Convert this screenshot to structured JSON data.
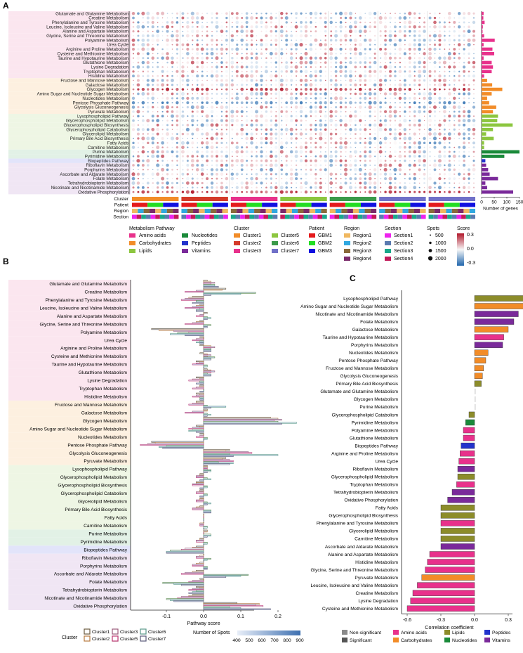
{
  "panels": {
    "a": "A",
    "b": "B",
    "c": "C"
  },
  "colors": {
    "amino": "#e8318b",
    "carb": "#f28c28",
    "lipid": "#8cc63f",
    "nuc": "#1a8a3a",
    "pep": "#2233cc",
    "vit": "#7a2a9a",
    "band_amino": "#fbe6ef",
    "band_carb": "#fdf0e0",
    "band_lipid": "#eef6e4",
    "band_nuc": "#e2f1e6",
    "band_pep": "#e2e4fa",
    "band_vit": "#f0e6f4",
    "corr_amino": "#e8318b",
    "corr_carb": "#f28c28",
    "corr_lipid": "#8c8c2a",
    "corr_nuc": "#1a8a3a",
    "corr_pep": "#2233cc",
    "corr_vit": "#7a2a9a",
    "corr_ns": "#d8d8d8"
  },
  "chart_data": [
    {
      "type": "heatmap",
      "panel": "A",
      "pathways": [
        "Glutamate and Glutamine Metabolism",
        "Creatine Metabolism",
        "Phenylalanine and Tyrosine Metabolism",
        "Leucine, Isoleucine and Valine Metabolism",
        "Alanine and Aspartate Metabolism",
        "Glycine, Serine and Threonine Metabolism",
        "Polyamine Metabolism",
        "Urea Cycle",
        "Arginine and Proline Metabolism",
        "Cysteine and Methionine Metabolism",
        "Taurine and Hypotaurine Metabolism",
        "Glutathione Metabolism",
        "Lysine Degradation",
        "Tryptophan Metabolism",
        "Histidine Metabolism",
        "Fructose and Mannose Metabolism",
        "Galactose Metabolism",
        "Glycogen Metabolism",
        "Amino Sugar and Nucleotide Sugar Metabolism",
        "Nucleotides Metabolism",
        "Pentose Phosphate Pathway",
        "Glycolysis Gluconeogenesis",
        "Pyruvate Metabolism",
        "Lysophospholipid Pathway",
        "Glycerophospholipid Metabolism",
        "Glycerophospholipid Biosynthesis",
        "Glycerophospholipid Catabolism",
        "Glycerolipid Metabolism",
        "Primary Bile Acid Biosynthesis",
        "Fatty Acids",
        "Carnitine Metabolism",
        "Purine Metabolism",
        "Pyrimidine Metabolism",
        "Biopeptides Pathway",
        "Riboflavin Metabolism",
        "Porphyrins Metabolism",
        "Ascorbate and Aldarate Metabolism",
        "Folate Metabolism",
        "Tetrahydrobiopterin Metabolism",
        "Nicotinate and Nicotinamide Metabolism",
        "Oxidative Phosphorylation"
      ],
      "pathway_class": [
        "amino",
        "amino",
        "amino",
        "amino",
        "amino",
        "amino",
        "amino",
        "amino",
        "amino",
        "amino",
        "amino",
        "amino",
        "amino",
        "amino",
        "amino",
        "carb",
        "carb",
        "carb",
        "carb",
        "carb",
        "carb",
        "carb",
        "carb",
        "lipid",
        "lipid",
        "lipid",
        "lipid",
        "lipid",
        "lipid",
        "lipid",
        "lipid",
        "nuc",
        "nuc",
        "pep",
        "vit",
        "vit",
        "vit",
        "vit",
        "vit",
        "vit",
        "vit"
      ],
      "num_genes": [
        8,
        7,
        12,
        5,
        4,
        10,
        52,
        8,
        43,
        50,
        8,
        40,
        45,
        40,
        10,
        22,
        42,
        82,
        40,
        22,
        30,
        58,
        45,
        65,
        62,
        123,
        45,
        18,
        48,
        10,
        10,
        150,
        90,
        15,
        18,
        26,
        32,
        65,
        15,
        22,
        125
      ],
      "num_genes_axis": {
        "ticks": [
          0,
          50,
          100,
          150
        ],
        "xlabel": "Number of genes"
      },
      "annotation_rows": [
        "Cluster",
        "Patient",
        "Region",
        "Section"
      ],
      "column_groups": 7,
      "score_scale": {
        "min": -0.3,
        "max": 0.3,
        "ticks": [
          "0.3",
          "0.0",
          "-0.3"
        ],
        "title": "Score"
      },
      "spots_scale": {
        "title": "Spots",
        "values": [
          "500",
          "1000",
          "1500",
          "2000"
        ]
      }
    },
    {
      "type": "bar",
      "panel": "B",
      "orientation": "horizontal",
      "xlabel": "Pathway score",
      "xlim": [
        -0.2,
        0.25
      ],
      "xticks": [
        "-0.1",
        "0.0",
        "0.1",
        "0.2"
      ],
      "legend_cluster_title": "Cluster",
      "legend_spots_title": "Number of Spots",
      "spots_ticks": [
        "400",
        "500",
        "600",
        "700",
        "800",
        "900"
      ],
      "series": [
        {
          "name": "Cluster1",
          "color": "#6a5a3e",
          "values": [
            0.01,
            0.06,
            -0.03,
            -0.01,
            0.01,
            -0.01,
            -0.14,
            -0.01,
            -0.01,
            -0.01,
            -0.02,
            0.01,
            -0.02,
            -0.01,
            -0.02,
            -0.02,
            0.01,
            0.18,
            -0.02,
            -0.01,
            -0.14,
            0.07,
            0.06,
            0.01,
            -0.01,
            -0.02,
            -0.01,
            -0.01,
            -0.01,
            0.0,
            0.0,
            0.01,
            -0.01,
            -0.02,
            0.0,
            -0.01,
            -0.02,
            -0.01,
            -0.02,
            -0.03,
            0.09
          ]
        },
        {
          "name": "Cluster2",
          "color": "#b87a3e",
          "values": [
            0.02,
            0.05,
            -0.04,
            -0.02,
            0.0,
            -0.02,
            -0.12,
            0.0,
            0.02,
            0.01,
            -0.01,
            0.02,
            -0.01,
            -0.01,
            -0.01,
            -0.02,
            0.01,
            0.2,
            -0.01,
            0.0,
            -0.13,
            0.06,
            0.05,
            0.01,
            -0.01,
            -0.02,
            -0.01,
            -0.01,
            -0.02,
            0.0,
            -0.01,
            0.01,
            -0.01,
            -0.03,
            -0.01,
            -0.02,
            -0.03,
            0.0,
            -0.01,
            -0.04,
            0.15
          ]
        },
        {
          "name": "Cluster3",
          "color": "#9a5a7a",
          "values": [
            0.03,
            -0.02,
            -0.05,
            -0.03,
            -0.01,
            -0.03,
            -0.08,
            -0.02,
            0.03,
            0.02,
            -0.02,
            0.03,
            -0.03,
            -0.02,
            -0.02,
            -0.03,
            -0.03,
            0.21,
            -0.03,
            -0.01,
            -0.15,
            0.12,
            0.07,
            0.01,
            -0.02,
            -0.03,
            -0.02,
            -0.02,
            -0.03,
            0.0,
            -0.01,
            0.0,
            -0.02,
            -0.05,
            -0.02,
            -0.03,
            -0.05,
            -0.03,
            -0.03,
            -0.06,
            0.14
          ]
        },
        {
          "name": "Cluster4",
          "color": "#c23a78",
          "values": [
            0.02,
            -0.05,
            -0.06,
            -0.05,
            -0.02,
            -0.05,
            -0.04,
            -0.03,
            0.02,
            0.01,
            -0.03,
            0.02,
            -0.04,
            -0.03,
            -0.03,
            -0.04,
            -0.05,
            0.19,
            -0.04,
            -0.02,
            -0.17,
            0.13,
            0.08,
            0.01,
            -0.02,
            -0.03,
            -0.02,
            -0.02,
            -0.03,
            0.0,
            -0.01,
            0.0,
            -0.02,
            -0.06,
            -0.02,
            -0.03,
            -0.06,
            -0.04,
            -0.04,
            -0.07,
            0.16
          ]
        },
        {
          "name": "Cluster5",
          "color": "#5a8a4a",
          "values": [
            0.03,
            0.14,
            -0.02,
            -0.01,
            0.01,
            0.02,
            -0.07,
            -0.01,
            0.02,
            0.03,
            0.01,
            0.01,
            -0.01,
            0.0,
            -0.01,
            0.01,
            0.01,
            0.2,
            -0.03,
            0.01,
            -0.1,
            0.07,
            0.04,
            0.02,
            0.01,
            0.01,
            0.01,
            0.01,
            0.02,
            0.0,
            0.01,
            0.02,
            0.01,
            -0.09,
            0.02,
            0.01,
            0.12,
            -0.11,
            -0.02,
            -0.1,
            0.07
          ]
        },
        {
          "name": "Cluster6",
          "color": "#5a9a8a",
          "values": [
            0.03,
            0.1,
            -0.02,
            -0.02,
            0.02,
            0.01,
            -0.09,
            -0.02,
            0.02,
            0.02,
            0.01,
            0.02,
            -0.01,
            0.0,
            -0.01,
            0.06,
            0.02,
            0.25,
            -0.04,
            0.01,
            -0.12,
            0.2,
            0.08,
            0.02,
            0.02,
            0.01,
            0.01,
            0.02,
            0.02,
            0.0,
            0.01,
            0.02,
            0.01,
            -0.1,
            0.01,
            0.01,
            0.1,
            -0.08,
            -0.03,
            -0.09,
            0.1
          ]
        },
        {
          "name": "Cluster7",
          "color": "#5a5a7a",
          "values": [
            0.04,
            0.02,
            -0.03,
            -0.02,
            0.01,
            0.01,
            -0.05,
            -0.01,
            0.02,
            0.02,
            0.0,
            0.02,
            -0.02,
            -0.01,
            -0.01,
            0.02,
            0.01,
            0.21,
            -0.02,
            0.0,
            -0.11,
            0.08,
            0.07,
            0.01,
            -0.01,
            -0.01,
            -0.01,
            0.01,
            0.02,
            0.0,
            0.0,
            0.01,
            0.0,
            -0.1,
            0.0,
            0.01,
            0.06,
            -0.06,
            -0.04,
            -0.08,
            0.18
          ]
        }
      ]
    },
    {
      "type": "bar",
      "panel": "C",
      "orientation": "horizontal",
      "xlabel": "Correlation coefficient",
      "xlim": [
        -0.65,
        0.65
      ],
      "xticks": [
        "-0.6",
        "-0.3",
        "0.0",
        "0.3",
        "0.6"
      ],
      "categories": [
        "Lysophospholipid Pathway",
        "Amino Sugar and Nucleotide Sugar Metabolism",
        "Nicotinate and Nicotinamide Metabolism",
        "Folate Metabolism",
        "Galactose Metabolism",
        "Taurine and Hypotaurine Metabolism",
        "Porphyrins Metabolism",
        "Nucleotides Metabolism",
        "Pentose Phosphate Pathway",
        "Fructose and Mannose Metabolism",
        "Glycolysis Gluconeogenesis",
        "Primary Bile Acid Biosynthesis",
        "Glutamate and Glutamine Metabolism",
        "Glycogen Metabolism",
        "Purine Metabolism",
        "Glycerophospholipid Catabolism",
        "Pyrimidine Metabolism",
        "Polyamine Metabolism",
        "Glutathione Metabolism",
        "Biopeptides Pathway",
        "Arginine and Proline Metabolism",
        "Urea Cycle",
        "Riboflavin Metabolism",
        "Glycerophospholipid Metabolism",
        "Tryptophan Metabolism",
        "Tetrahydrobiopterin Metabolism",
        "Oxidative Phosphorylation",
        "Fatty Acids",
        "Glycerophospholipid Biosynthesis",
        "Phenylalanine and Tyrosine Metabolism",
        "Glycerolipid Metabolism",
        "Carnitine Metabolism",
        "Ascorbate and Aldarate Metabolism",
        "Alanine and Aspartate Metabolism",
        "Histidine Metabolism",
        "Glycine, Serine and Threonine Metabolism",
        "Pyruvate Metabolism",
        "Leucine, Isoleucine and Valine Metabolism",
        "Creatine Metabolism",
        "Lysine Degradation",
        "Cysteine and Methionine Metabolism"
      ],
      "values": [
        0.55,
        0.49,
        0.39,
        0.35,
        0.3,
        0.26,
        0.25,
        0.12,
        0.1,
        0.08,
        0.07,
        0.06,
        0.01,
        0.01,
        0.01,
        -0.05,
        -0.08,
        -0.1,
        -0.1,
        -0.12,
        -0.13,
        -0.14,
        -0.15,
        -0.15,
        -0.16,
        -0.2,
        -0.24,
        -0.3,
        -0.3,
        -0.3,
        -0.3,
        -0.3,
        -0.3,
        -0.4,
        -0.42,
        -0.44,
        -0.47,
        -0.51,
        -0.55,
        -0.57,
        -0.6
      ],
      "class": [
        "lipid",
        "carb",
        "vit",
        "vit",
        "carb",
        "amino",
        "vit",
        "carb",
        "carb",
        "carb",
        "carb",
        "lipid",
        "amino",
        "carb",
        "nuc",
        "lipid",
        "nuc",
        "amino",
        "amino",
        "pep",
        "amino",
        "amino",
        "vit",
        "lipid",
        "amino",
        "vit",
        "vit",
        "lipid",
        "lipid",
        "amino",
        "lipid",
        "lipid",
        "vit",
        "amino",
        "amino",
        "amino",
        "carb",
        "amino",
        "amino",
        "amino",
        "amino"
      ],
      "significant": [
        true,
        true,
        true,
        true,
        true,
        true,
        true,
        true,
        true,
        true,
        true,
        true,
        false,
        false,
        false,
        true,
        true,
        true,
        true,
        true,
        true,
        true,
        true,
        true,
        true,
        true,
        true,
        true,
        true,
        true,
        true,
        true,
        true,
        true,
        true,
        true,
        true,
        true,
        true,
        true,
        true
      ]
    }
  ],
  "legend_a": {
    "pathway_title": "Metabolism Pathway",
    "pathway_items": [
      {
        "label": "Amino acids",
        "key": "amino"
      },
      {
        "label": "Nucleotides",
        "key": "nuc"
      },
      {
        "label": "Carbohydrates",
        "key": "carb"
      },
      {
        "label": "Peptides",
        "key": "pep"
      },
      {
        "label": "Lipids",
        "key": "lipid"
      },
      {
        "label": "Vitamins",
        "key": "vit"
      }
    ],
    "cluster_title": "Cluster",
    "clusters": [
      {
        "label": "Cluster1",
        "color": "#f28c28"
      },
      {
        "label": "Cluster5",
        "color": "#8cc63f"
      },
      {
        "label": "Cluster2",
        "color": "#d43a2a"
      },
      {
        "label": "Cluster6",
        "color": "#3a9a4a"
      },
      {
        "label": "Cluster3",
        "color": "#e8318b"
      },
      {
        "label": "Cluster7",
        "color": "#7070c8"
      }
    ],
    "patient_title": "Patient",
    "patients": [
      {
        "label": "GBM1",
        "color": "#e41a1c"
      },
      {
        "label": "GBM2",
        "color": "#22dd22"
      },
      {
        "label": "GBM3",
        "color": "#1010e0"
      }
    ],
    "region_title": "Region",
    "regions": [
      {
        "label": "Region1",
        "color": "#f0b860"
      },
      {
        "label": "Region2",
        "color": "#30a8e0"
      },
      {
        "label": "Region3",
        "color": "#8a6a3a"
      },
      {
        "label": "Region4",
        "color": "#7a2a6a"
      }
    ],
    "section_title": "Section",
    "sections": [
      {
        "label": "Section1",
        "color": "#ee22ee"
      },
      {
        "label": "Section2",
        "color": "#5a7ab0"
      },
      {
        "label": "Section3",
        "color": "#1aa88a"
      },
      {
        "label": "Section4",
        "color": "#c21a5a"
      }
    ]
  },
  "legend_c": {
    "items": [
      {
        "label": "Non-significant",
        "color": "#8a8a8a"
      },
      {
        "label": "Amino acids",
        "color": "#e8318b"
      },
      {
        "label": "Lipids",
        "color": "#8c8c2a"
      },
      {
        "label": "Peptides",
        "color": "#2233cc"
      },
      {
        "label": "Significant",
        "color": "#555555"
      },
      {
        "label": "Carbohydrates",
        "color": "#f28c28"
      },
      {
        "label": "Nucleotides",
        "color": "#1a8a3a"
      },
      {
        "label": "Vitamins",
        "color": "#7a2a9a"
      }
    ]
  }
}
